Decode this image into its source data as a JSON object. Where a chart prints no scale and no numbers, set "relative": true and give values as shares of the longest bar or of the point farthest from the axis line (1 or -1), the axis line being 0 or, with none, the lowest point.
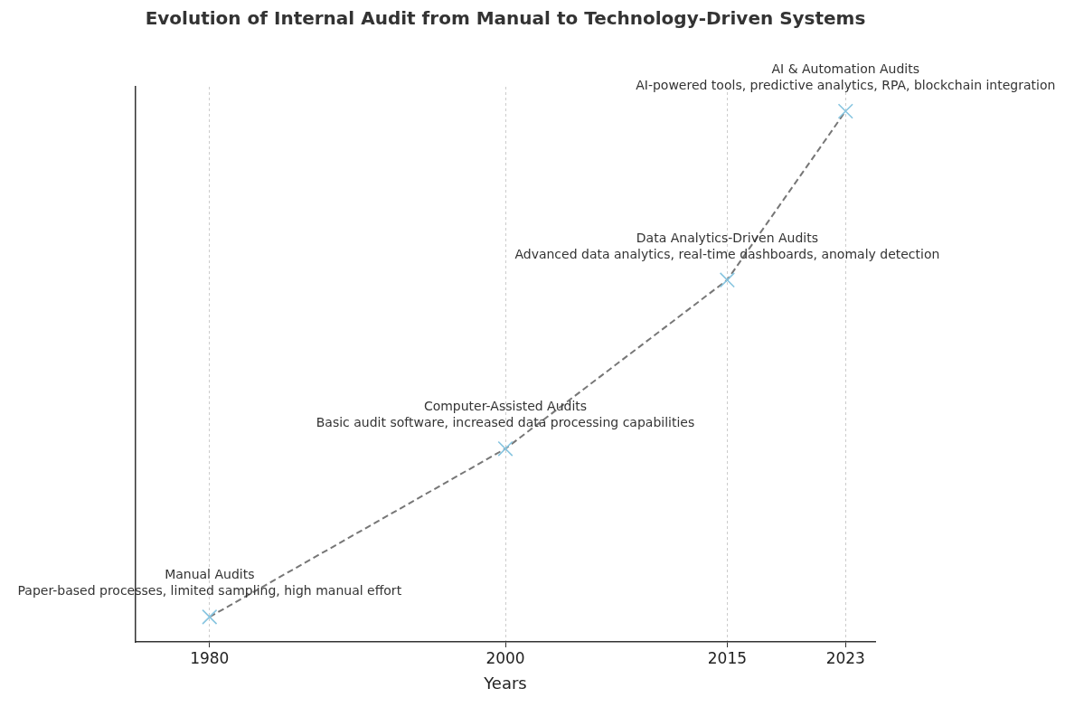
{
  "chart_data": {
    "type": "line",
    "title": "Evolution of Internal Audit from Manual to Technology-Driven Systems",
    "xlabel": "Years",
    "relative": true,
    "x": [
      1980,
      2000,
      2015,
      2023
    ],
    "series": [
      {
        "type": "line",
        "color": "#777777",
        "values": [
          0.047,
          0.364,
          0.682,
          1
        ],
        "marker": "none",
        "line_style": "dashed"
      },
      {
        "type": "scatter",
        "color": "#87c5e0",
        "values": [
          0.047,
          0.364,
          0.682,
          1
        ],
        "marker": "cross"
      }
    ],
    "xlim": [
      1975,
      2025
    ],
    "xticks": [
      1980,
      2000,
      2015,
      2023
    ],
    "grid": "x",
    "legend": false,
    "annotations": [
      {
        "text": "Manual Audits\nPaper-based processes, limited sampling, high manual effort",
        "x": 1980,
        "y": 0.047
      },
      {
        "text": "Computer-Assisted Audits\nBasic audit software, increased data processing capabilities",
        "x": 2000,
        "y": 0.364
      },
      {
        "text": "Data Analytics-Driven Audits\nAdvanced data analytics, real-time dashboards, anomaly detection",
        "x": 2015,
        "y": 0.682
      },
      {
        "text": "AI & Automation Audits\nAI-powered tools, predictive analytics, RPA, blockchain integration",
        "x": 2023,
        "y": 1
      }
    ]
  }
}
